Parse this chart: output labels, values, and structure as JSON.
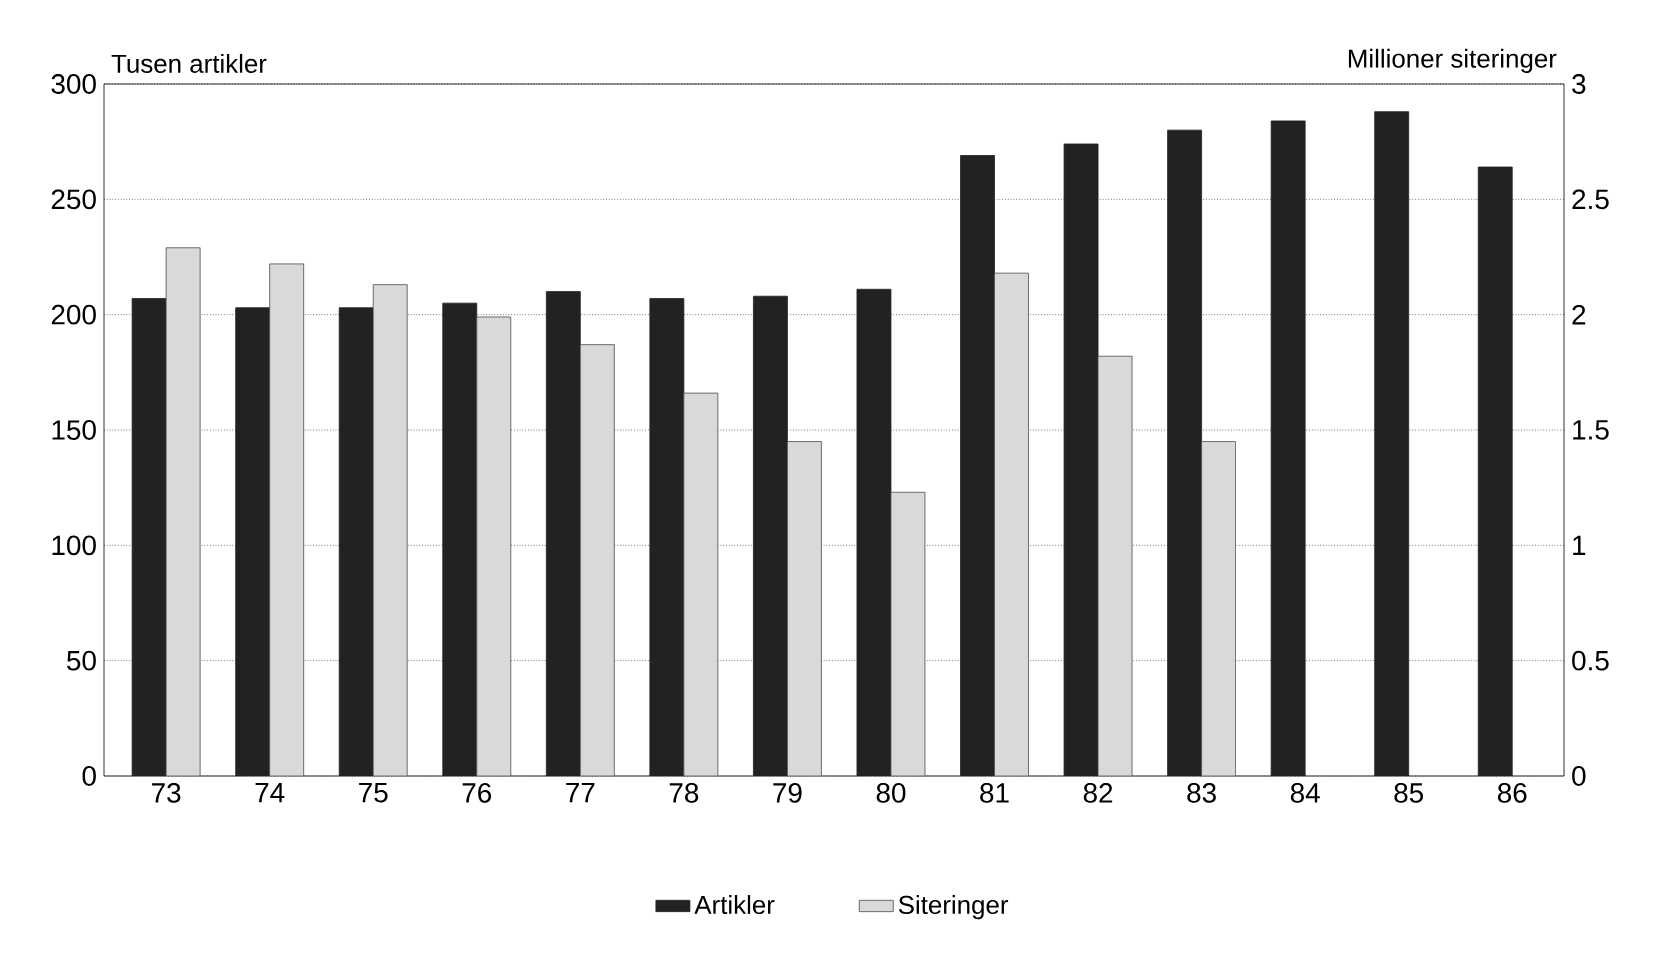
{
  "chart_data": {
    "type": "bar",
    "xlabel": null,
    "ylabel": "Tusen artikler",
    "y2label": "Millioner siteringer",
    "categories": [
      "73",
      "74",
      "75",
      "76",
      "77",
      "78",
      "79",
      "80",
      "81",
      "82",
      "83",
      "84",
      "85",
      "86"
    ],
    "series": [
      {
        "name": "Artikler",
        "color": "#222222",
        "values": [
          207,
          203,
          203,
          205,
          210,
          207,
          208,
          211,
          269,
          274,
          280,
          284,
          288,
          264
        ]
      },
      {
        "name": "Siteringer",
        "color": "#d9d9d9",
        "axis": "y2",
        "values": [
          2.29,
          2.22,
          2.13,
          1.99,
          1.87,
          1.66,
          1.45,
          1.23,
          2.18,
          1.82,
          1.45,
          null,
          null,
          null
        ]
      }
    ],
    "ylim": [
      0,
      300
    ],
    "yticks": [
      0,
      50,
      100,
      150,
      200,
      250,
      300
    ],
    "y2lim": [
      0,
      3
    ],
    "y2ticks": [
      0,
      0.5,
      1,
      1.5,
      2,
      2.5,
      3
    ],
    "grid": "y",
    "legend": "bottom"
  }
}
